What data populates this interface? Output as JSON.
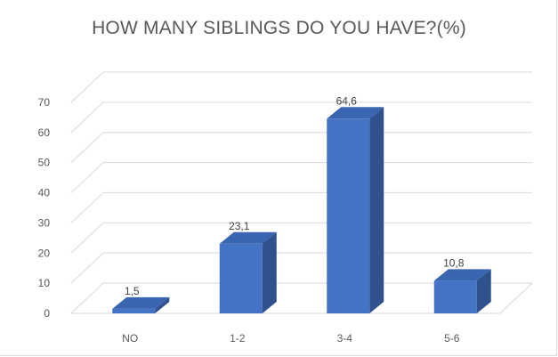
{
  "chart_data": {
    "type": "bar",
    "title": "HOW MANY SIBLINGS DO YOU HAVE?(%)",
    "categories": [
      "NO",
      "1-2",
      "3-4",
      "5-6"
    ],
    "values": [
      1.5,
      23.1,
      64.6,
      10.8
    ],
    "data_labels": [
      "1,5",
      "23,1",
      "64,6",
      "10,8"
    ],
    "y_ticks": [
      "0",
      "10",
      "20",
      "30",
      "40",
      "50",
      "60",
      "70"
    ],
    "ylim": [
      0,
      70
    ],
    "style": "3d-column",
    "grid": true,
    "legend": "none",
    "colors": {
      "front": "#4472c4",
      "side": "#2f528f",
      "top": "#3a65b0",
      "grid": "#d9d9d9"
    }
  }
}
